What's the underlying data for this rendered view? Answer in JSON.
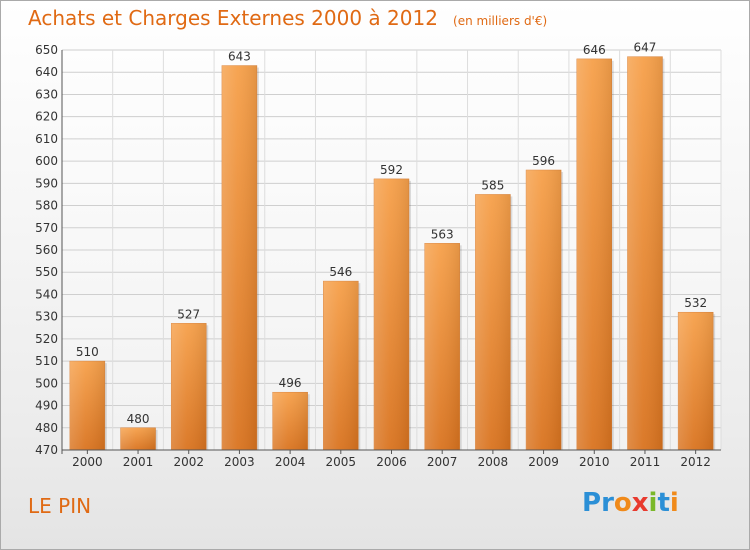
{
  "chart_data": {
    "type": "bar",
    "title": "Achats et Charges Externes 2000 à 2012",
    "subtitle": "(en milliers d'€)",
    "categories": [
      "2000",
      "2001",
      "2002",
      "2003",
      "2004",
      "2005",
      "2006",
      "2007",
      "2008",
      "2009",
      "2010",
      "2011",
      "2012"
    ],
    "values": [
      510,
      480,
      527,
      643,
      496,
      546,
      592,
      563,
      585,
      596,
      646,
      647,
      532
    ],
    "ylim": [
      470,
      650
    ],
    "yticks": [
      470,
      480,
      490,
      500,
      510,
      520,
      530,
      540,
      550,
      560,
      570,
      580,
      590,
      600,
      610,
      620,
      630,
      640,
      650
    ],
    "grid": true,
    "bar_color": "#f39a3c",
    "title_color": "#e06a14"
  },
  "footer": {
    "place": "LE PIN"
  },
  "logo": {
    "text": "Proxiti",
    "letters": [
      {
        "ch": "P",
        "color": "#2b8fd6"
      },
      {
        "ch": "r",
        "color": "#2b8fd6"
      },
      {
        "ch": "o",
        "color": "#f08a1a"
      },
      {
        "ch": "x",
        "color": "#e83a2e"
      },
      {
        "ch": "i",
        "color": "#7ab82a"
      },
      {
        "ch": "t",
        "color": "#2b8fd6"
      },
      {
        "ch": "i",
        "color": "#f08a1a"
      }
    ]
  }
}
